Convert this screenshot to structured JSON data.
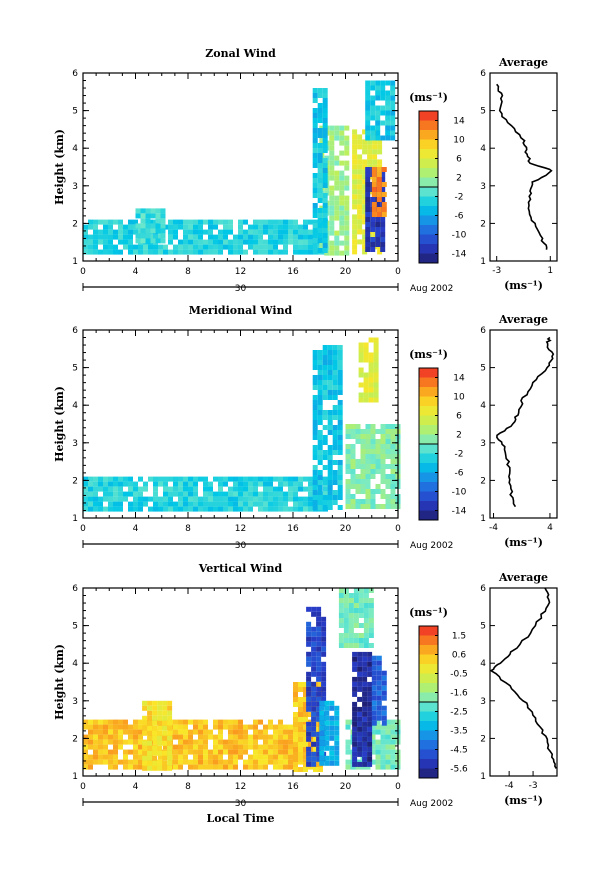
{
  "chart_data": [
    {
      "type": "heatmap",
      "title": "Zonal Wind",
      "ylabel": "Height (km)",
      "xlabel": "",
      "x_ticks": [
        "0",
        "4",
        "8",
        "12",
        "16",
        "20",
        "0"
      ],
      "y_ticks": [
        "1",
        "2",
        "3",
        "4",
        "5",
        "6"
      ],
      "xlim": [
        0,
        24
      ],
      "ylim": [
        1,
        6
      ],
      "date_bar": {
        "day": "30",
        "month_year": "Aug 2002"
      },
      "colorbar": {
        "unit": "(ms⁻¹)",
        "ticks": [
          "14",
          "10",
          "6",
          "2",
          "-2",
          "-6",
          "-10",
          "-14"
        ],
        "range": [
          -16,
          16
        ]
      },
      "regions": [
        {
          "x": [
            0,
            18.5
          ],
          "y": [
            1.2,
            2.1
          ],
          "value": -3
        },
        {
          "x": [
            4,
            6
          ],
          "y": [
            1.5,
            2.4
          ],
          "value": -2
        },
        {
          "x": [
            18,
            20
          ],
          "y": [
            1.2,
            4.6
          ],
          "value": 2
        },
        {
          "x": [
            17.5,
            18.5
          ],
          "y": [
            1.3,
            5.6
          ],
          "value": -4
        },
        {
          "x": [
            20.5,
            22.5
          ],
          "y": [
            1.3,
            4.5
          ],
          "value": 6
        },
        {
          "x": [
            21.5,
            23
          ],
          "y": [
            1.3,
            3.5
          ],
          "value": -13
        },
        {
          "x": [
            21.5,
            23.5
          ],
          "y": [
            4.3,
            5.8
          ],
          "value": -4
        },
        {
          "x": [
            22,
            23
          ],
          "y": [
            2.2,
            3.5
          ],
          "value": 12
        }
      ],
      "profile": {
        "title": "Average",
        "xlabel": "(ms⁻¹)",
        "x_ticks": [
          "-3",
          "1"
        ],
        "xlim": [
          -3.5,
          1.5
        ],
        "height": [
          1.3,
          1.6,
          2.0,
          2.4,
          2.8,
          3.1,
          3.4,
          3.6,
          3.9,
          4.2,
          4.6,
          5.0,
          5.4,
          5.7
        ],
        "value": [
          0.7,
          0.4,
          -0.2,
          -0.6,
          -0.5,
          -0.3,
          1.2,
          -0.5,
          -0.8,
          -1.0,
          -2.0,
          -2.8,
          -2.6,
          -3.0
        ]
      }
    },
    {
      "type": "heatmap",
      "title": "Meridional Wind",
      "ylabel": "Height (km)",
      "xlabel": "",
      "x_ticks": [
        "0",
        "4",
        "8",
        "12",
        "16",
        "20",
        "0"
      ],
      "y_ticks": [
        "1",
        "2",
        "3",
        "4",
        "5",
        "6"
      ],
      "xlim": [
        0,
        24
      ],
      "ylim": [
        1,
        6
      ],
      "date_bar": {
        "day": "30",
        "month_year": "Aug 2002"
      },
      "colorbar": {
        "unit": "(ms⁻¹)",
        "ticks": [
          "14",
          "10",
          "6",
          "2",
          "-2",
          "-6",
          "-10",
          "-14"
        ],
        "range": [
          -16,
          16
        ]
      },
      "regions": [
        {
          "x": [
            0,
            18.5
          ],
          "y": [
            1.2,
            2.1
          ],
          "value": -3
        },
        {
          "x": [
            17.5,
            19.5
          ],
          "y": [
            1.3,
            5.6
          ],
          "value": -4
        },
        {
          "x": [
            20,
            24
          ],
          "y": [
            1.3,
            3.5
          ],
          "value": 1
        },
        {
          "x": [
            21,
            22.5
          ],
          "y": [
            4.2,
            5.8
          ],
          "value": 6
        }
      ],
      "profile": {
        "title": "Average",
        "xlabel": "(ms⁻¹)",
        "x_ticks": [
          "-4",
          "4"
        ],
        "xlim": [
          -4.5,
          5
        ],
        "height": [
          1.3,
          1.7,
          2.1,
          2.5,
          2.9,
          3.2,
          3.5,
          3.8,
          4.2,
          4.6,
          5.0,
          5.3,
          5.6,
          5.8
        ],
        "value": [
          -1.0,
          -1.5,
          -1.7,
          -2.0,
          -2.6,
          -3.5,
          -1.2,
          -0.6,
          0.3,
          1.8,
          3.5,
          4.5,
          3.5,
          4.0
        ]
      }
    },
    {
      "type": "heatmap",
      "title": "Vertical Wind",
      "ylabel": "Height (km)",
      "xlabel": "Local Time",
      "x_ticks": [
        "0",
        "4",
        "8",
        "12",
        "16",
        "20",
        "0"
      ],
      "y_ticks": [
        "1",
        "2",
        "3",
        "4",
        "5",
        "6"
      ],
      "xlim": [
        0,
        24
      ],
      "ylim": [
        1,
        6
      ],
      "date_bar": {
        "day": "30",
        "month_year": "Aug 2002"
      },
      "colorbar": {
        "unit": "(ms⁻¹)",
        "ticks": [
          "1.5",
          "0.6",
          "-0.5",
          "-1.6",
          "-2.5",
          "-3.5",
          "-4.5",
          "-5.6"
        ],
        "range": [
          -6.1,
          2
        ]
      },
      "regions": [
        {
          "x": [
            0,
            17.5
          ],
          "y": [
            1.2,
            2.5
          ],
          "value": 0.4
        },
        {
          "x": [
            4.5,
            6.5
          ],
          "y": [
            1.2,
            3.0
          ],
          "value": 0.0
        },
        {
          "x": [
            16,
            18
          ],
          "y": [
            1.2,
            3.5
          ],
          "value": 0.3
        },
        {
          "x": [
            17,
            18.5
          ],
          "y": [
            1.3,
            5.5
          ],
          "value": -5.0
        },
        {
          "x": [
            18,
            19.5
          ],
          "y": [
            1.3,
            3.0
          ],
          "value": -3.5
        },
        {
          "x": [
            20,
            24
          ],
          "y": [
            1.3,
            2.5
          ],
          "value": -2.0
        },
        {
          "x": [
            20.5,
            22
          ],
          "y": [
            1.3,
            4.3
          ],
          "value": -5.6
        },
        {
          "x": [
            19.5,
            22
          ],
          "y": [
            4.5,
            6.0
          ],
          "value": -2.0
        },
        {
          "x": [
            22,
            23
          ],
          "y": [
            2.4,
            4.2
          ],
          "value": -4.5
        }
      ],
      "profile": {
        "title": "Average",
        "xlabel": "(ms⁻¹)",
        "x_ticks": [
          "-4",
          "-3"
        ],
        "xlim": [
          -4.8,
          -2.0
        ],
        "height": [
          1.2,
          1.5,
          1.9,
          2.3,
          2.7,
          3.0,
          3.4,
          3.8,
          4.0,
          4.3,
          4.8,
          5.3,
          5.7,
          6.0
        ],
        "value": [
          -2.1,
          -2.2,
          -2.4,
          -2.7,
          -3.0,
          -3.4,
          -4.0,
          -4.7,
          -4.4,
          -3.9,
          -3.1,
          -2.6,
          -2.3,
          -2.5
        ]
      }
    }
  ]
}
